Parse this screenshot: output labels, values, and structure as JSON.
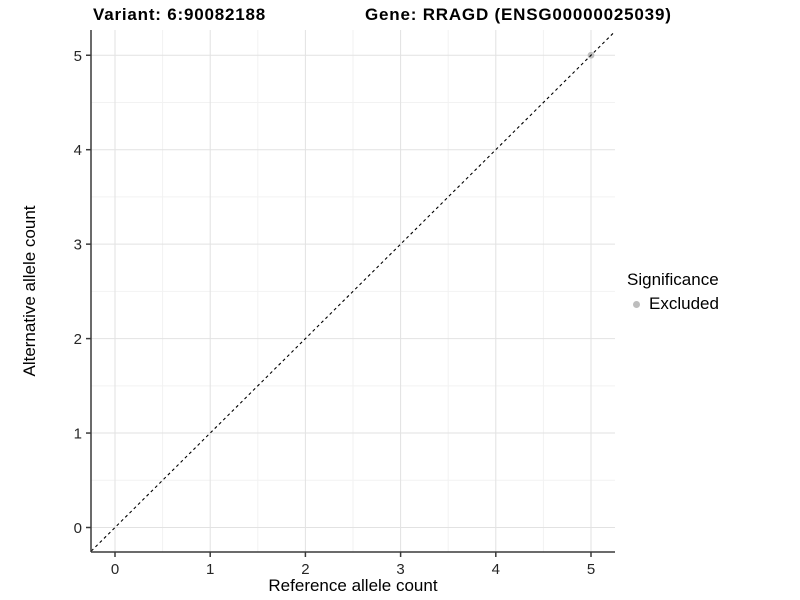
{
  "figure": {
    "title_left": "Variant: 6:90082188",
    "title_right": "Gene: RRAGD (ENSG00000025039)"
  },
  "chart_data": {
    "type": "scatter",
    "xlabel": "Reference allele count",
    "ylabel": "Alternative allele count",
    "x_ticks": [
      0,
      1,
      2,
      3,
      4,
      5
    ],
    "y_ticks": [
      0,
      1,
      2,
      3,
      4,
      5
    ],
    "xlim": [
      -0.25,
      5.25
    ],
    "ylim": [
      -0.25,
      5.25
    ],
    "grid": "major and minor gridlines, light gray on white panel",
    "reference_line": {
      "type": "identity",
      "equation": "y = x",
      "style": "dashed",
      "color": "#000000"
    },
    "series": [
      {
        "name": "Excluded",
        "color": "#bebebe",
        "points": [
          {
            "x": 5,
            "y": 5
          }
        ]
      }
    ],
    "legend": {
      "title": "Significance",
      "position": "right",
      "entries": [
        {
          "label": "Excluded",
          "color": "#bebebe",
          "marker": "circle"
        }
      ]
    },
    "colors": {
      "background": "#ffffff",
      "grid_major": "#e2e2e2",
      "grid_minor": "#f2f2f2",
      "axis_line": "#3a3a3a",
      "tick_text": "#262626",
      "title_text": "#000000"
    }
  }
}
